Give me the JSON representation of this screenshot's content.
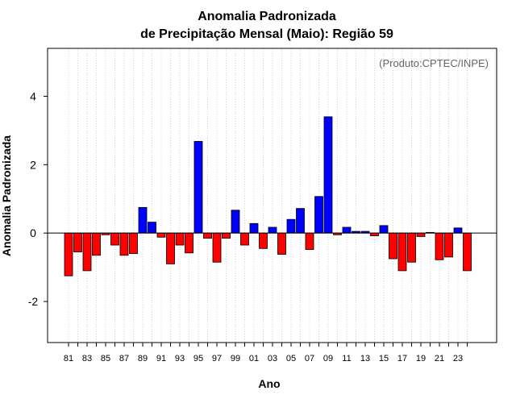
{
  "chart_data": {
    "type": "bar",
    "title_line1": "Anomalia Padronizada",
    "title_line2": "de Precipitação Mensal (Maio): Região 59",
    "xlabel": "Ano",
    "ylabel": "Anomalia Padronizada",
    "credit": "(Produto:CPTEC/INPE)",
    "ylim": [
      -3.2,
      5.4
    ],
    "yticks": [
      -2,
      0,
      2,
      4
    ],
    "grid": "vertical dotted",
    "positive_color": "#0000ff",
    "negative_color": "#ff0000",
    "categories": [
      "81",
      "82",
      "83",
      "84",
      "85",
      "86",
      "87",
      "88",
      "89",
      "90",
      "91",
      "92",
      "93",
      "94",
      "95",
      "96",
      "97",
      "98",
      "99",
      "00",
      "01",
      "02",
      "03",
      "04",
      "05",
      "06",
      "07",
      "08",
      "09",
      "10",
      "11",
      "12",
      "13",
      "14",
      "15",
      "16",
      "17",
      "18",
      "19",
      "20",
      "21",
      "22",
      "23",
      "24"
    ],
    "tick_labels": [
      "81",
      "",
      "83",
      "",
      "85",
      "",
      "87",
      "",
      "89",
      "",
      "91",
      "",
      "93",
      "",
      "95",
      "",
      "97",
      "",
      "99",
      "",
      "01",
      "",
      "03",
      "",
      "05",
      "",
      "07",
      "",
      "09",
      "",
      "11",
      "",
      "13",
      "",
      "15",
      "",
      "17",
      "",
      "19",
      "",
      "21",
      "",
      "23",
      ""
    ],
    "values": [
      -1.25,
      -0.55,
      -1.1,
      -0.65,
      -0.05,
      -0.35,
      -0.65,
      -0.6,
      0.75,
      0.32,
      -0.12,
      -0.9,
      -0.35,
      -0.58,
      2.68,
      -0.15,
      -0.85,
      -0.15,
      0.67,
      -0.35,
      0.28,
      -0.45,
      0.17,
      -0.62,
      0.4,
      0.72,
      -0.48,
      1.07,
      3.4,
      -0.05,
      0.17,
      0.05,
      0.05,
      -0.08,
      0.22,
      -0.75,
      -1.1,
      -0.85,
      -0.1,
      0.02,
      -0.78,
      -0.7,
      0.15,
      -1.1
    ]
  }
}
